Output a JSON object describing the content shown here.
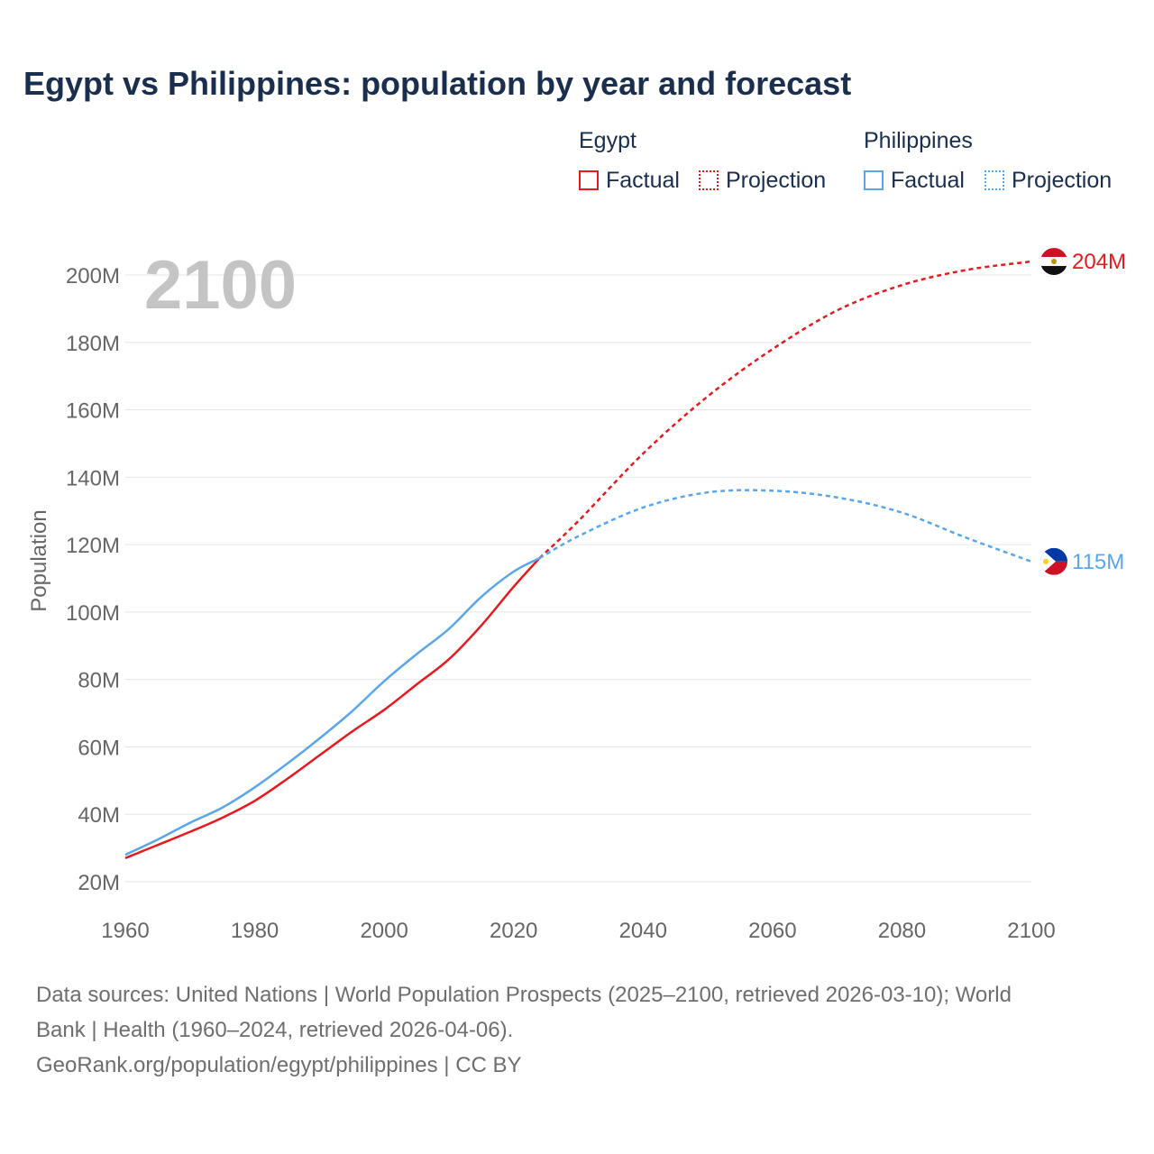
{
  "title": "Egypt vs Philippines: population by year and forecast",
  "legend": {
    "groups": [
      {
        "name": "Egypt",
        "factual_label": "Factual",
        "projection_label": "Projection",
        "color": "#e8191e"
      },
      {
        "name": "Philippines",
        "factual_label": "Factual",
        "projection_label": "Projection",
        "color": "#5aa6e8"
      }
    ]
  },
  "chart_data": {
    "type": "line",
    "title": "Egypt vs Philippines: population by year and forecast",
    "year_overlay": "2100",
    "xlabel": "",
    "ylabel": "Population",
    "xlim": [
      1960,
      2100
    ],
    "ylim": [
      20000000,
      205000000
    ],
    "x_ticks": [
      1960,
      1980,
      2000,
      2020,
      2040,
      2060,
      2080,
      2100
    ],
    "y_ticks": [
      20000000,
      40000000,
      60000000,
      80000000,
      100000000,
      120000000,
      140000000,
      160000000,
      180000000,
      200000000
    ],
    "y_tick_labels": [
      "20M",
      "40M",
      "60M",
      "80M",
      "100M",
      "120M",
      "140M",
      "160M",
      "180M",
      "200M"
    ],
    "grid": true,
    "factual_end_year": 2024,
    "series": [
      {
        "name": "Egypt",
        "color": "#e8191e",
        "end_label": "204M",
        "points": [
          [
            1960,
            27.0
          ],
          [
            1965,
            30.9
          ],
          [
            1970,
            34.8
          ],
          [
            1975,
            39.0
          ],
          [
            1980,
            44.0
          ],
          [
            1985,
            50.5
          ],
          [
            1990,
            57.5
          ],
          [
            1995,
            64.5
          ],
          [
            2000,
            71.0
          ],
          [
            2005,
            78.5
          ],
          [
            2010,
            86.0
          ],
          [
            2015,
            96.0
          ],
          [
            2020,
            107.5
          ],
          [
            2024,
            116.0
          ],
          [
            2030,
            127.0
          ],
          [
            2040,
            147.0
          ],
          [
            2050,
            164.0
          ],
          [
            2060,
            178.0
          ],
          [
            2070,
            189.5
          ],
          [
            2080,
            197.0
          ],
          [
            2090,
            201.5
          ],
          [
            2100,
            204.0
          ]
        ]
      },
      {
        "name": "Philippines",
        "color": "#5aa6e8",
        "end_label": "115M",
        "points": [
          [
            1960,
            28.0
          ],
          [
            1965,
            32.5
          ],
          [
            1970,
            37.5
          ],
          [
            1975,
            42.0
          ],
          [
            1980,
            48.0
          ],
          [
            1985,
            55.0
          ],
          [
            1990,
            62.5
          ],
          [
            1995,
            70.5
          ],
          [
            2000,
            79.5
          ],
          [
            2005,
            87.5
          ],
          [
            2010,
            95.0
          ],
          [
            2015,
            104.5
          ],
          [
            2020,
            112.0
          ],
          [
            2024,
            116.0
          ],
          [
            2030,
            122.5
          ],
          [
            2040,
            131.0
          ],
          [
            2050,
            135.5
          ],
          [
            2060,
            136.0
          ],
          [
            2070,
            134.0
          ],
          [
            2080,
            129.5
          ],
          [
            2090,
            122.0
          ],
          [
            2100,
            115.0
          ]
        ]
      }
    ]
  },
  "sources": {
    "line1": "Data sources: United Nations | World Population Prospects (2025–2100, retrieved 2026-03-10); World",
    "line2": "Bank | Health (1960–2024, retrieved 2026-04-06).",
    "line3": "GeoRank.org/population/egypt/philippines | CC BY"
  }
}
